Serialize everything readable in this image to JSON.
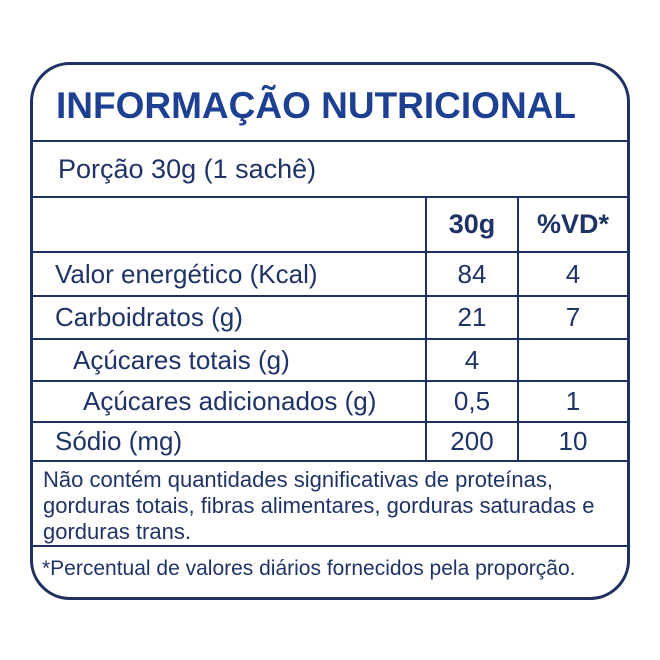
{
  "colors": {
    "line": "#1e3160",
    "text": "#1f3366",
    "title": "#1e4092",
    "bg": "#ffffff"
  },
  "title": "INFORMAÇÃO NUTRICIONAL",
  "portion": "Porção 30g (1 sachê)",
  "table": {
    "col_headers": {
      "amount": "30g",
      "dv": "%VD*"
    },
    "rows": [
      {
        "label": "Valor energético (Kcal)",
        "amount": "84",
        "dv": "4"
      },
      {
        "label": "Carboidratos (g)",
        "amount": "21",
        "dv": "7"
      },
      {
        "label": "Açúcares totais (g)",
        "amount": "4",
        "dv": ""
      },
      {
        "label": "Açúcares adicionados (g)",
        "amount": "0,5",
        "dv": "1"
      },
      {
        "label": "Sódio (mg)",
        "amount": "200",
        "dv": "10"
      }
    ]
  },
  "disclaimer": "Não contém quantidades significativas de proteínas, gorduras totais, fibras alimentares, gorduras saturadas e gorduras trans.",
  "footnote": "*Percentual de valores diários fornecidos pela proporção."
}
